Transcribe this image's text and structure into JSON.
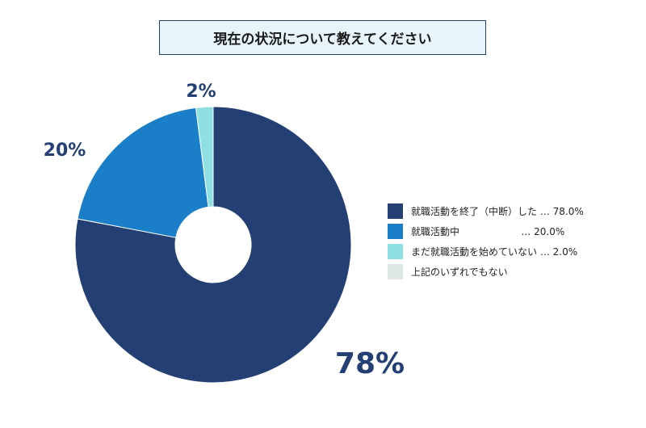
{
  "chart_data": {
    "type": "pie",
    "title": "現在の状況について教えてください",
    "donut": true,
    "slices": [
      {
        "label": "就職活動を終了（中断）した",
        "value": 78.0,
        "value_text": "78.0%",
        "data_label": "78%",
        "color": "#233f73"
      },
      {
        "label": "就職活動中",
        "value": 20.0,
        "value_text": "20.0%",
        "data_label": "20%",
        "color": "#1a7fc8"
      },
      {
        "label": "まだ就職活動を始めていない",
        "value": 2.0,
        "value_text": "2.0%",
        "data_label": "2%",
        "color": "#8ee0e2"
      },
      {
        "label": "上記のいずれでもない",
        "value": 0,
        "value_text": "",
        "data_label": "",
        "color": "#dde6e3"
      }
    ],
    "legend": {
      "placement": "right",
      "rows": [
        {
          "label": "就職活動を終了（中断）した",
          "dots": " … ",
          "value": "78.0%"
        },
        {
          "label": "就職活動中",
          "dots": "                    … ",
          "value": "20.0%"
        },
        {
          "label": "まだ就職活動を始めていない",
          "dots": " … ",
          "value": "2.0%"
        },
        {
          "label": "上記のいずれでもない",
          "dots": "",
          "value": ""
        }
      ]
    }
  }
}
